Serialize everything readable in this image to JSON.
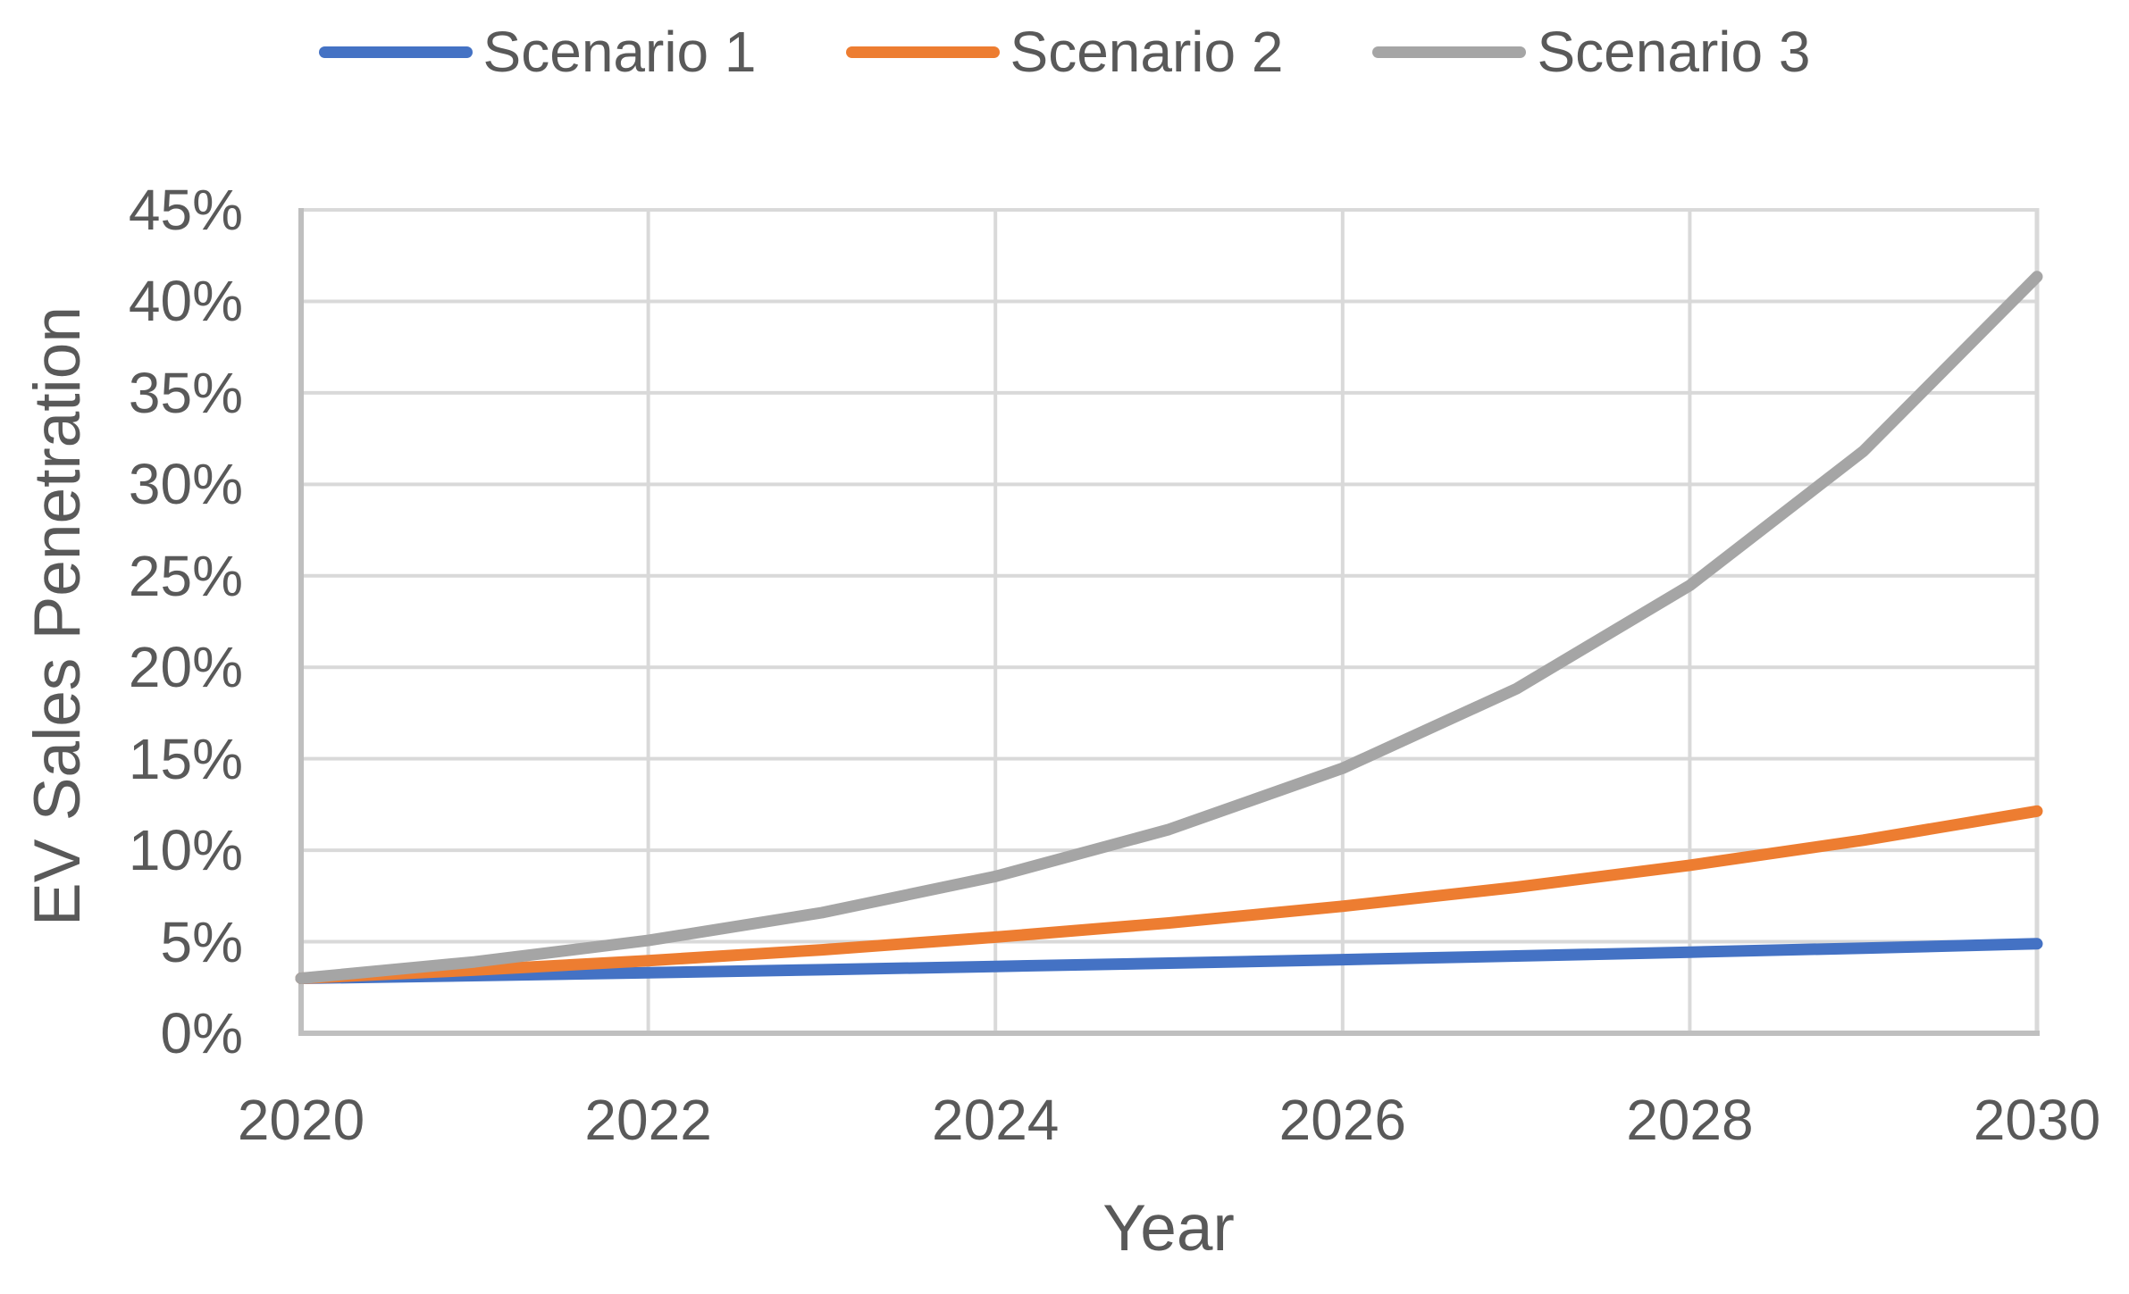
{
  "chart_data": {
    "type": "line",
    "title": "",
    "xlabel": "Year",
    "ylabel": "EV Sales Penetration",
    "x": [
      2020,
      2021,
      2022,
      2023,
      2024,
      2025,
      2026,
      2027,
      2028,
      2029,
      2030
    ],
    "series": [
      {
        "name": "Scenario 1",
        "color": "#4472C4",
        "values": [
          3.0,
          3.15,
          3.31,
          3.47,
          3.65,
          3.83,
          4.02,
          4.22,
          4.43,
          4.65,
          4.89
        ]
      },
      {
        "name": "Scenario 2",
        "color": "#ED7D31",
        "values": [
          3.0,
          3.45,
          3.97,
          4.56,
          5.25,
          6.03,
          6.94,
          7.98,
          9.18,
          10.55,
          12.14
        ]
      },
      {
        "name": "Scenario 3",
        "color": "#A5A5A5",
        "values": [
          3.0,
          3.9,
          5.07,
          6.59,
          8.57,
          11.14,
          14.48,
          18.82,
          24.47,
          31.81,
          41.35
        ]
      }
    ],
    "xlim": [
      2020,
      2030
    ],
    "ylim": [
      0,
      45
    ],
    "x_ticks": [
      2020,
      2022,
      2024,
      2026,
      2028,
      2030
    ],
    "x_tick_labels": [
      "2020",
      "2022",
      "2024",
      "2026",
      "2028",
      "2030"
    ],
    "y_ticks": [
      0,
      5,
      10,
      15,
      20,
      25,
      30,
      35,
      40,
      45
    ],
    "y_tick_labels": [
      "0%",
      "5%",
      "10%",
      "15%",
      "20%",
      "25%",
      "30%",
      "35%",
      "40%",
      "45%"
    ],
    "grid": true,
    "legend_position": "top"
  },
  "colors": {
    "text": "#595959",
    "gridline": "#D9D9D9",
    "axis_line": "#BFBFBF",
    "background": "#FFFFFF"
  }
}
